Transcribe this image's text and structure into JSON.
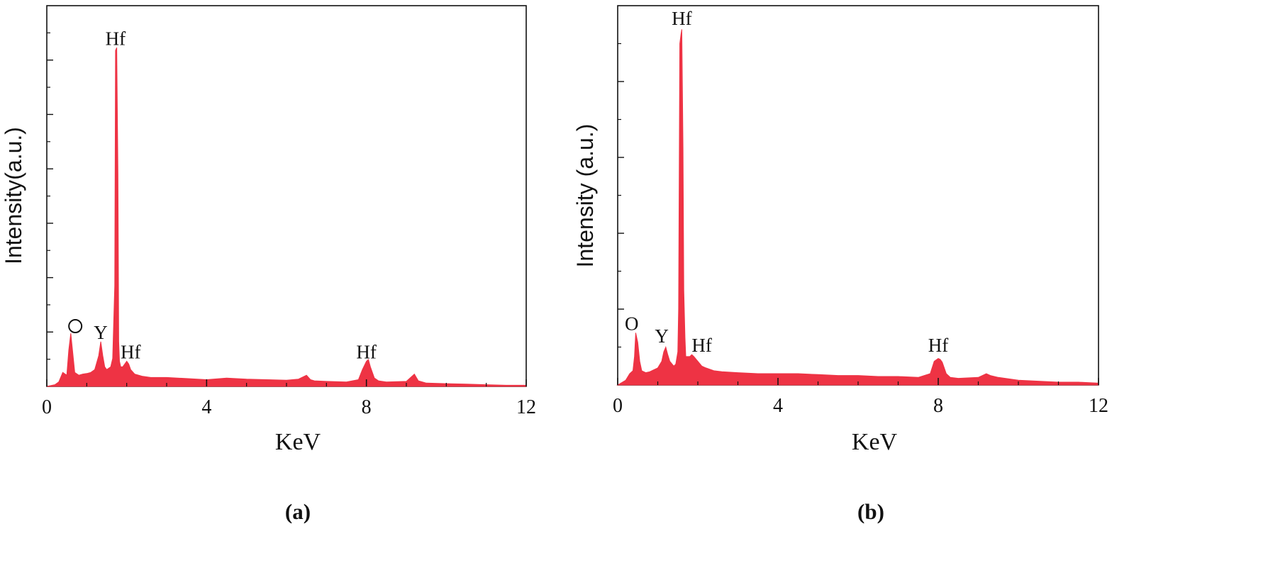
{
  "colors": {
    "spectrum": "#ee3344",
    "axis": "#111111",
    "text": "#111111"
  },
  "chart_data": [
    {
      "type": "area",
      "panel_label": "(a)",
      "xlabel": "KeV",
      "ylabel": "Intensity(a.u.)",
      "xlim": [
        0,
        12
      ],
      "ylim": [
        0,
        68
      ],
      "x_ticks": [
        0,
        4,
        8,
        12
      ],
      "x_tick_labels": [
        "0",
        "4",
        "8",
        "12"
      ],
      "y_tick_labels_shown": false,
      "grid": false,
      "legend": "none",
      "x": [
        0,
        0.2,
        0.3,
        0.4,
        0.5,
        0.55,
        0.6,
        0.65,
        0.7,
        0.8,
        0.9,
        1.0,
        1.1,
        1.2,
        1.3,
        1.35,
        1.4,
        1.45,
        1.5,
        1.6,
        1.65,
        1.7,
        1.72,
        1.75,
        1.78,
        1.8,
        1.82,
        1.85,
        1.9,
        1.95,
        2.0,
        2.05,
        2.1,
        2.2,
        2.4,
        2.6,
        3.0,
        3.5,
        4.0,
        4.5,
        5.0,
        5.5,
        6.0,
        6.3,
        6.5,
        6.6,
        6.7,
        7.0,
        7.5,
        7.8,
        7.9,
        8.0,
        8.05,
        8.1,
        8.2,
        8.3,
        8.5,
        9.0,
        9.2,
        9.3,
        9.5,
        10.0,
        10.5,
        11.0,
        11.5,
        12.0
      ],
      "y": [
        0,
        0.3,
        0.8,
        2.5,
        2.0,
        6.5,
        9.5,
        6.0,
        2.5,
        2.0,
        2.2,
        2.3,
        2.5,
        3.0,
        5.5,
        8.0,
        5.5,
        3.5,
        3.0,
        3.5,
        5.0,
        18.0,
        60.0,
        60.5,
        38.0,
        8.0,
        4.5,
        3.5,
        3.5,
        4.0,
        4.5,
        4.0,
        3.0,
        2.2,
        1.8,
        1.6,
        1.6,
        1.4,
        1.2,
        1.5,
        1.3,
        1.2,
        1.1,
        1.3,
        2.0,
        1.2,
        1.0,
        0.9,
        0.8,
        1.2,
        3.0,
        4.5,
        4.8,
        3.5,
        1.5,
        1.0,
        0.8,
        0.9,
        2.2,
        1.0,
        0.6,
        0.5,
        0.4,
        0.3,
        0.2,
        0.2
      ],
      "annotations": [
        {
          "text": "Hf",
          "x": 1.72,
          "y": 61
        },
        {
          "text": "O",
          "x": 0.5,
          "y": 10
        },
        {
          "text": "Y",
          "x": 1.35,
          "y": 8.5
        },
        {
          "text": "Hf",
          "x": 2.1,
          "y": 5
        },
        {
          "text": "Hf",
          "x": 8.0,
          "y": 5
        }
      ]
    },
    {
      "type": "area",
      "panel_label": "(b)",
      "xlabel": "KeV",
      "ylabel": "Intensity (a.u.)",
      "xlim": [
        0,
        12
      ],
      "ylim": [
        0,
        40
      ],
      "x_ticks": [
        0,
        4,
        8,
        12
      ],
      "x_tick_labels": [
        "0",
        "4",
        "8",
        "12"
      ],
      "y_tick_labels_shown": false,
      "grid": false,
      "legend": "none",
      "x": [
        0,
        0.2,
        0.3,
        0.38,
        0.42,
        0.45,
        0.5,
        0.55,
        0.6,
        0.7,
        0.8,
        0.9,
        1.0,
        1.1,
        1.15,
        1.2,
        1.25,
        1.3,
        1.4,
        1.45,
        1.5,
        1.52,
        1.55,
        1.58,
        1.6,
        1.63,
        1.65,
        1.68,
        1.7,
        1.8,
        1.85,
        1.9,
        2.0,
        2.1,
        2.2,
        2.4,
        2.6,
        3.0,
        3.5,
        4.0,
        4.5,
        5.0,
        5.5,
        6.0,
        6.5,
        7.0,
        7.5,
        7.8,
        7.9,
        8.0,
        8.05,
        8.1,
        8.2,
        8.3,
        8.5,
        9.0,
        9.2,
        9.3,
        9.5,
        10.0,
        10.5,
        11.0,
        11.5,
        12.0
      ],
      "y": [
        0,
        0.5,
        1.2,
        1.5,
        3.0,
        5.5,
        4.5,
        2.5,
        1.5,
        1.3,
        1.4,
        1.6,
        1.8,
        2.5,
        3.5,
        4.0,
        3.2,
        2.5,
        2.0,
        2.2,
        3.5,
        8.0,
        36.0,
        37.0,
        37.5,
        25.0,
        10.0,
        5.0,
        3.0,
        3.0,
        3.2,
        3.0,
        2.5,
        2.0,
        1.8,
        1.5,
        1.4,
        1.3,
        1.2,
        1.2,
        1.2,
        1.1,
        1.0,
        1.0,
        0.9,
        0.9,
        0.8,
        1.2,
        2.5,
        2.8,
        2.7,
        2.4,
        1.2,
        0.8,
        0.7,
        0.8,
        1.2,
        1.0,
        0.8,
        0.5,
        0.4,
        0.3,
        0.3,
        0.2
      ],
      "annotations": [
        {
          "text": "Hf",
          "x": 1.6,
          "y": 38
        },
        {
          "text": "O",
          "x": 0.35,
          "y": 5.8
        },
        {
          "text": "Y",
          "x": 1.1,
          "y": 4.5
        },
        {
          "text": "Hf",
          "x": 2.1,
          "y": 3.5
        },
        {
          "text": "Hf",
          "x": 8.0,
          "y": 3.5
        }
      ]
    }
  ]
}
